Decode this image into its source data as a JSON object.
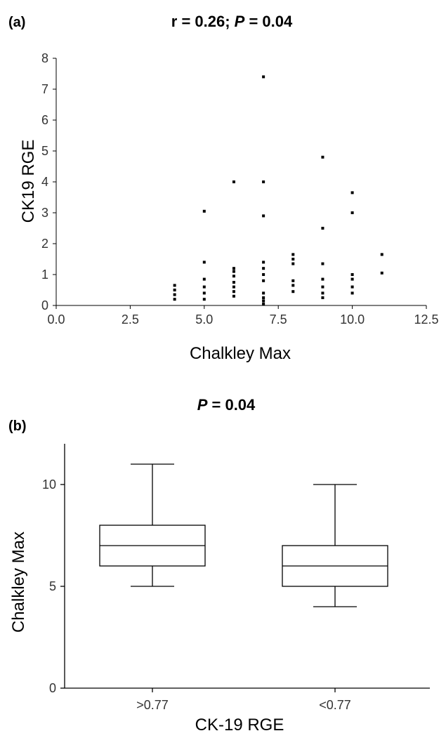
{
  "figure": {
    "panel_a_label": "(a)",
    "panel_b_label": "(b)"
  },
  "chart_data": [
    {
      "type": "scatter",
      "title_prefix": "r = 0.26; ",
      "title_p": "P",
      "title_suffix": " = 0.04",
      "xlabel": "Chalkley Max",
      "ylabel": "CK19 RGE",
      "xlim": [
        0,
        12.5
      ],
      "ylim": [
        0,
        8
      ],
      "xticks": [
        "0.0",
        "2.5",
        "5.0",
        "7.5",
        "10.0",
        "12.5"
      ],
      "yticks": [
        "0",
        "1",
        "2",
        "3",
        "4",
        "5",
        "6",
        "7",
        "8"
      ],
      "points": [
        [
          4,
          0.2
        ],
        [
          4,
          0.35
        ],
        [
          4,
          0.5
        ],
        [
          4,
          0.65
        ],
        [
          5,
          0.2
        ],
        [
          5,
          0.4
        ],
        [
          5,
          0.6
        ],
        [
          5,
          0.85
        ],
        [
          5,
          1.4
        ],
        [
          5,
          3.05
        ],
        [
          6,
          0.3
        ],
        [
          6,
          0.45
        ],
        [
          6,
          0.6
        ],
        [
          6,
          0.75
        ],
        [
          6,
          0.95
        ],
        [
          6,
          1.1
        ],
        [
          6,
          1.2
        ],
        [
          6,
          4.0
        ],
        [
          7,
          0.05
        ],
        [
          7,
          0.15
        ],
        [
          7,
          0.25
        ],
        [
          7,
          0.4
        ],
        [
          7,
          0.8
        ],
        [
          7,
          1.0
        ],
        [
          7,
          1.2
        ],
        [
          7,
          1.4
        ],
        [
          7,
          2.9
        ],
        [
          7,
          4.0
        ],
        [
          7,
          7.4
        ],
        [
          8,
          0.45
        ],
        [
          8,
          0.65
        ],
        [
          8,
          0.8
        ],
        [
          8,
          1.35
        ],
        [
          8,
          1.5
        ],
        [
          8,
          1.65
        ],
        [
          9,
          0.25
        ],
        [
          9,
          0.4
        ],
        [
          9,
          0.6
        ],
        [
          9,
          0.85
        ],
        [
          9,
          1.35
        ],
        [
          9,
          2.5
        ],
        [
          9,
          4.8
        ],
        [
          10,
          0.4
        ],
        [
          10,
          0.6
        ],
        [
          10,
          0.85
        ],
        [
          10,
          1.0
        ],
        [
          10,
          3.0
        ],
        [
          10,
          3.65
        ],
        [
          11,
          1.05
        ],
        [
          11,
          1.65
        ]
      ],
      "grid": false
    },
    {
      "type": "box",
      "title_p": "P",
      "title_suffix": " = 0.04",
      "xlabel": "CK-19 RGE",
      "ylabel": "Chalkley Max",
      "ylim": [
        0,
        12
      ],
      "yticks": [
        "0",
        "5",
        "10"
      ],
      "categories": [
        ">0.77",
        "<0.77"
      ],
      "boxes": [
        {
          "min": 5,
          "q1": 6,
          "median": 7,
          "q3": 8,
          "max": 11
        },
        {
          "min": 4,
          "q1": 5,
          "median": 6,
          "q3": 7,
          "max": 10
        }
      ],
      "grid": false
    }
  ]
}
